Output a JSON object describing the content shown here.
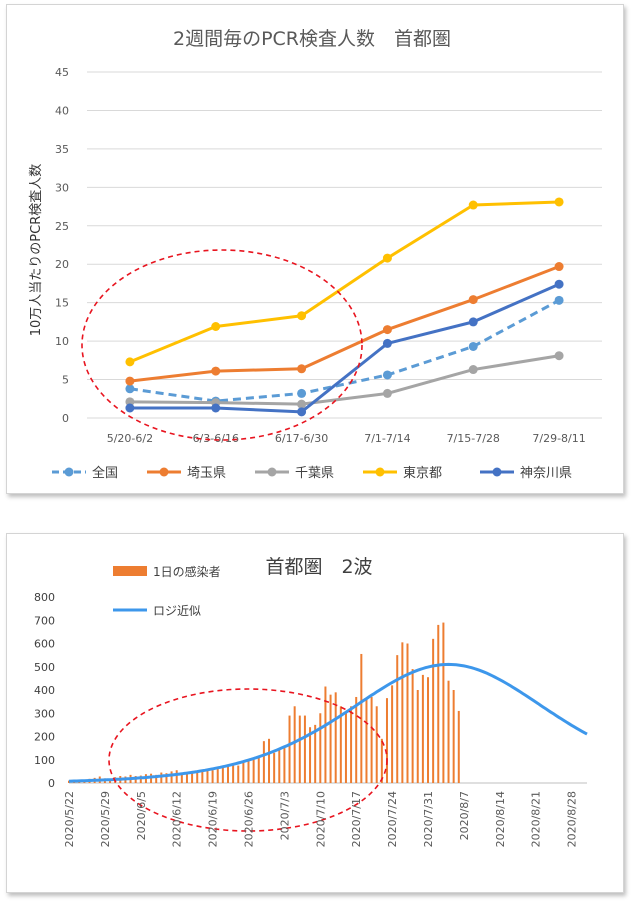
{
  "chart_data": [
    {
      "type": "line",
      "title": "2週間毎のPCR検査人数　首都圏",
      "ylabel": "10万人当たりのPCR検査人数",
      "xlabel": "",
      "ylim": [
        0,
        45
      ],
      "yticks": [
        "0",
        "5",
        "10",
        "15",
        "20",
        "25",
        "30",
        "35",
        "40",
        "45"
      ],
      "categories": [
        "5/20-6/2",
        "6/3-6/16",
        "6/17-6/30",
        "7/1-7/14",
        "7/15-7/28",
        "7/29-8/11"
      ],
      "grid": true,
      "legend_position": "bottom",
      "series": [
        {
          "name": "全国",
          "color": "#5B9BD5",
          "dashed": true,
          "values": [
            3.8,
            2.2,
            3.2,
            5.6,
            9.3,
            15.3
          ]
        },
        {
          "name": "埼玉県",
          "color": "#ED7D31",
          "dashed": false,
          "values": [
            4.8,
            6.1,
            6.4,
            11.5,
            15.4,
            19.7
          ]
        },
        {
          "name": "千葉県",
          "color": "#A5A5A5",
          "dashed": false,
          "values": [
            2.1,
            2.0,
            1.8,
            3.2,
            6.3,
            8.1
          ]
        },
        {
          "name": "東京都",
          "color": "#FFC000",
          "dashed": false,
          "values": [
            7.3,
            11.9,
            13.3,
            20.8,
            27.7,
            28.1
          ]
        },
        {
          "name": "神奈川県",
          "color": "#4472C4",
          "dashed": false,
          "values": [
            1.3,
            1.3,
            0.8,
            9.7,
            12.5,
            17.4
          ]
        }
      ],
      "annotation": "red dashed ellipse around 5/20–6/30"
    },
    {
      "type": "bar",
      "title": "首都圏　2波",
      "ylim": [
        0,
        800
      ],
      "yticks": [
        "0",
        "100",
        "200",
        "300",
        "400",
        "500",
        "600",
        "700",
        "800"
      ],
      "x_start": "2020/5/22",
      "x_end": "2020/8/31",
      "xticks": [
        "2020/5/22",
        "2020/5/29",
        "2020/6/5",
        "2020/6/12",
        "2020/6/19",
        "2020/6/26",
        "2020/7/3",
        "2020/7/10",
        "2020/7/17",
        "2020/7/24",
        "2020/7/31",
        "2020/8/7",
        "2020/8/14",
        "2020/8/21",
        "2020/8/28"
      ],
      "legend_position": "top-left",
      "bar_series": {
        "name": "1日の感染者",
        "color": "#ED7D31",
        "values": [
          10,
          12,
          14,
          15,
          18,
          22,
          28,
          20,
          18,
          25,
          30,
          28,
          35,
          30,
          32,
          38,
          40,
          35,
          45,
          42,
          50,
          55,
          45,
          48,
          52,
          50,
          58,
          62,
          55,
          60,
          70,
          80,
          85,
          75,
          95,
          100,
          105,
          110,
          180,
          190,
          130,
          150,
          160,
          290,
          330,
          290,
          290,
          240,
          250,
          300,
          415,
          380,
          390,
          330,
          300,
          330,
          370,
          555,
          360,
          370,
          330,
          190,
          365,
          420,
          550,
          605,
          600,
          490,
          400,
          465,
          455,
          620,
          680,
          690,
          440,
          400,
          310
        ],
        "bar_dates_start": "2020/5/22"
      },
      "line_series": {
        "name": "ロジ近似",
        "color": "#3D97EB",
        "model": "logistic-derivative",
        "peak_value": 510,
        "peak_date": "2020/8/4",
        "start_value": 8
      },
      "annotation": "red dashed ellipse around 2020/5/29–7/17"
    }
  ]
}
